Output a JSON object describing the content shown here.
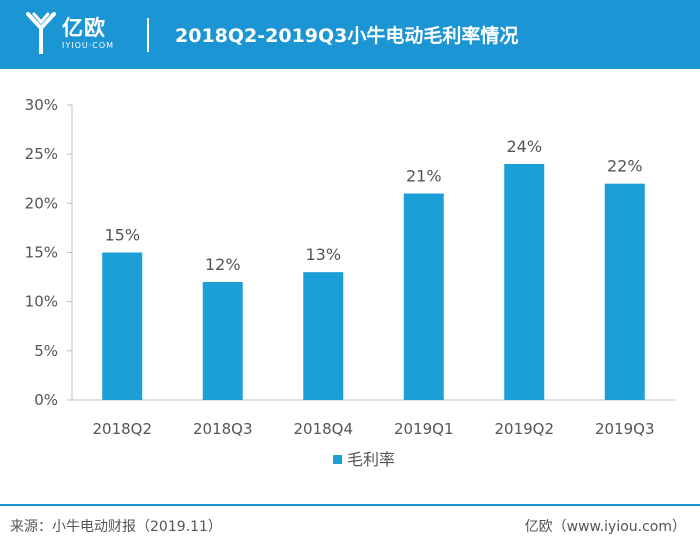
{
  "header": {
    "logo_cn": "亿欧",
    "logo_en": "IYIOU·COM",
    "title": "2018Q2-2019Q3小牛电动毛利率情况"
  },
  "footer": {
    "source": "来源：小牛电动财报（2019.11）",
    "site": "亿欧（www.iyiou.com）"
  },
  "colors": {
    "brand": "#1c95d4",
    "bar": "#1c9fd6"
  },
  "icons": {
    "logo": "iyiou-logo-icon"
  },
  "chart_data": {
    "type": "bar",
    "title": "2018Q2-2019Q3小牛电动毛利率情况",
    "categories": [
      "2018Q2",
      "2018Q3",
      "2018Q4",
      "2019Q1",
      "2019Q2",
      "2019Q3"
    ],
    "series": [
      {
        "name": "毛利率",
        "values": [
          15,
          12,
          13,
          21,
          24,
          22
        ]
      }
    ],
    "data_labels": [
      "15%",
      "12%",
      "13%",
      "21%",
      "24%",
      "22%"
    ],
    "y_ticks": [
      "0%",
      "5%",
      "10%",
      "15%",
      "20%",
      "25%",
      "30%"
    ],
    "ylim": [
      0,
      30
    ],
    "xlabel": "",
    "ylabel": "",
    "grid": false,
    "legend": "bottom-center"
  }
}
